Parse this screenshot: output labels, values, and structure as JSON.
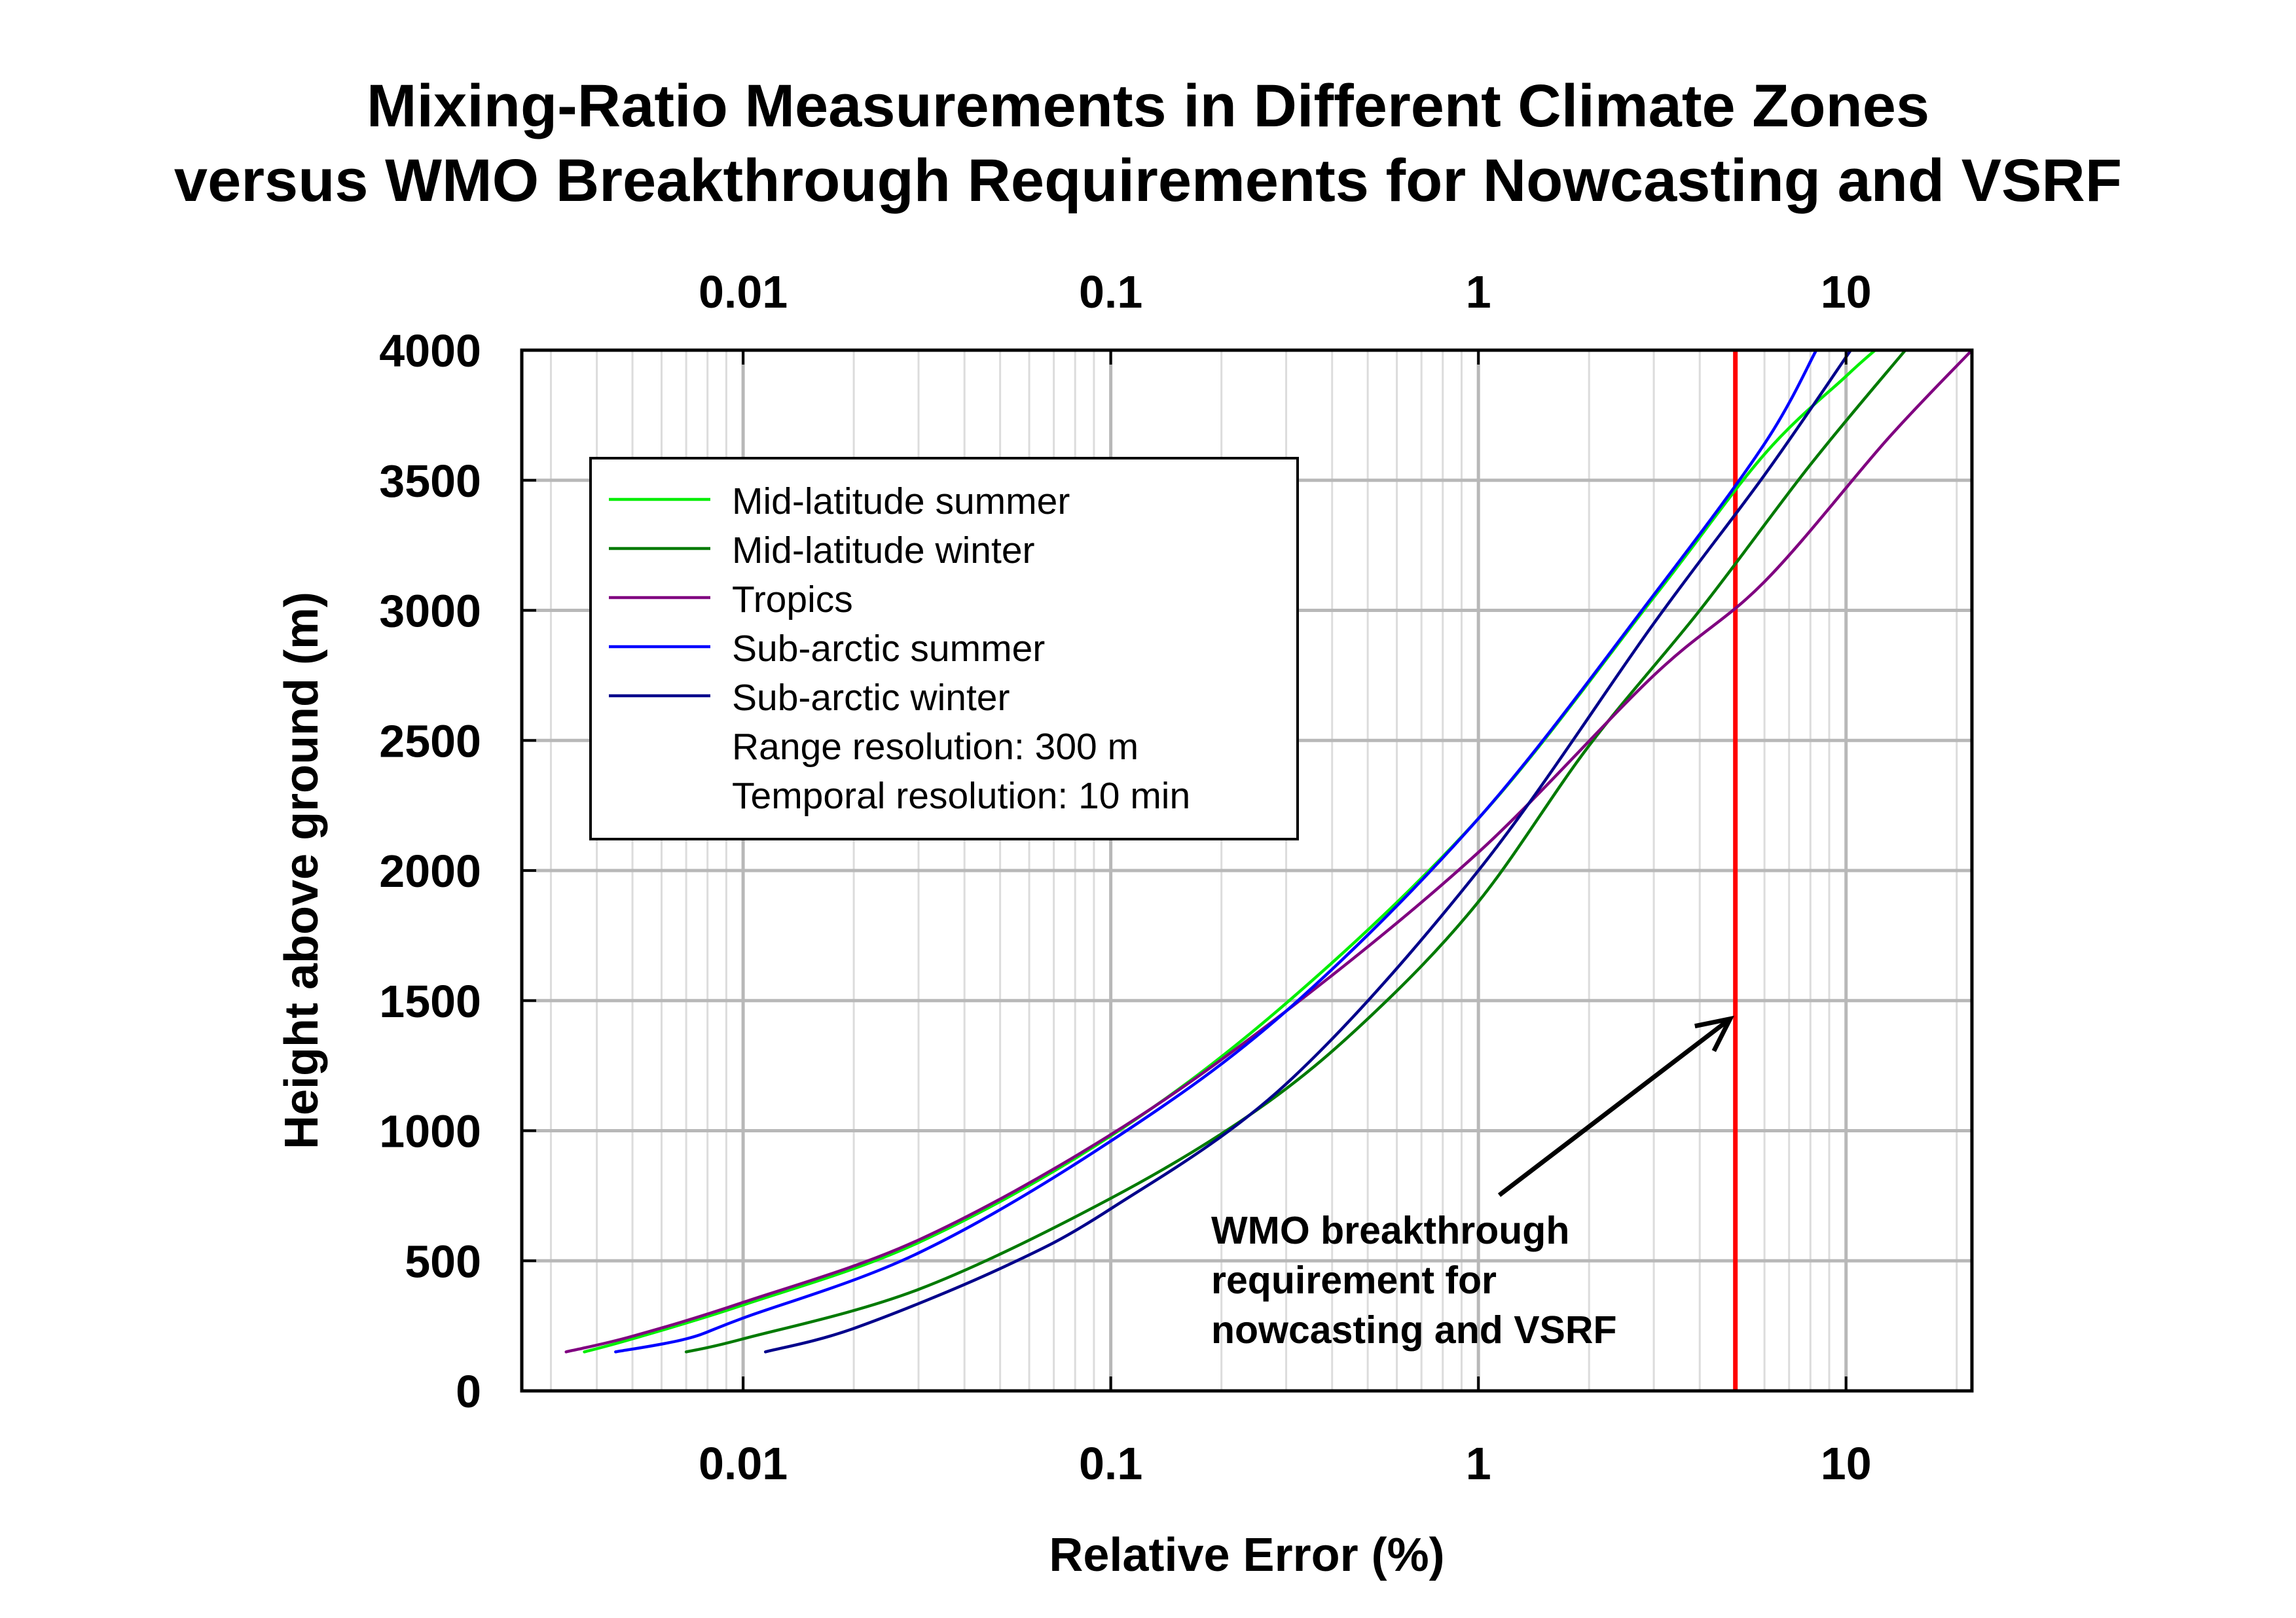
{
  "chart_data": {
    "type": "line",
    "title": [
      "Mixing-Ratio Measurements in Different Climate Zones",
      "versus WMO Breakthrough Requirements for Nowcasting and VSRF"
    ],
    "xlabel": "Relative Error (%)",
    "ylabel": "Height above ground (m)",
    "xscale": "log",
    "xlim": [
      0.0025,
      22
    ],
    "ylim": [
      0,
      4000
    ],
    "x_ticks": [
      0.01,
      0.1,
      1,
      10
    ],
    "x_tick_labels": [
      "0.01",
      "0.1",
      "1",
      "10"
    ],
    "x_tick_labels_top": [
      "0.01",
      "0.1",
      "1",
      "10"
    ],
    "y_ticks": [
      0,
      500,
      1000,
      1500,
      2000,
      2500,
      3000,
      3500,
      4000
    ],
    "y_tick_labels": [
      "0",
      "500",
      "1000",
      "1500",
      "2000",
      "2500",
      "3000",
      "3500",
      "4000"
    ],
    "grid": true,
    "legend_position": "upper-left",
    "legend_notes": [
      "Range resolution: 300 m",
      "Temporal resolution: 10 min"
    ],
    "series": [
      {
        "name": "Mid-latitude summer",
        "color": "#00ee00",
        "points": [
          [
            0.0037,
            150
          ],
          [
            0.005,
            200
          ],
          [
            0.01,
            330
          ],
          [
            0.03,
            570
          ],
          [
            0.1,
            980
          ],
          [
            0.3,
            1490
          ],
          [
            1,
            2200
          ],
          [
            3,
            3050
          ],
          [
            6,
            3600
          ],
          [
            10,
            3900
          ],
          [
            12,
            4000
          ]
        ]
      },
      {
        "name": "Mid-latitude winter",
        "color": "#007a00",
        "points": [
          [
            0.007,
            150
          ],
          [
            0.01,
            200
          ],
          [
            0.03,
            390
          ],
          [
            0.1,
            740
          ],
          [
            0.25,
            1080
          ],
          [
            0.5,
            1430
          ],
          [
            1,
            1880
          ],
          [
            2,
            2480
          ],
          [
            4,
            3000
          ],
          [
            8,
            3560
          ],
          [
            14.5,
            4000
          ]
        ]
      },
      {
        "name": "Tropics",
        "color": "#800080",
        "points": [
          [
            0.0033,
            150
          ],
          [
            0.005,
            210
          ],
          [
            0.01,
            340
          ],
          [
            0.03,
            580
          ],
          [
            0.1,
            985
          ],
          [
            0.3,
            1460
          ],
          [
            1,
            2070
          ],
          [
            3,
            2750
          ],
          [
            6,
            3110
          ],
          [
            13,
            3660
          ],
          [
            22,
            4000
          ]
        ]
      },
      {
        "name": "Sub-arctic summer",
        "color": "#0000ff",
        "points": [
          [
            0.0045,
            150
          ],
          [
            0.007,
            200
          ],
          [
            0.01,
            280
          ],
          [
            0.03,
            530
          ],
          [
            0.1,
            960
          ],
          [
            0.3,
            1460
          ],
          [
            1,
            2200
          ],
          [
            3,
            3060
          ],
          [
            6,
            3640
          ],
          [
            8.3,
            4000
          ]
        ]
      },
      {
        "name": "Sub-arctic winter",
        "color": "#00008b",
        "points": [
          [
            0.0115,
            150
          ],
          [
            0.02,
            240
          ],
          [
            0.05,
            470
          ],
          [
            0.1,
            700
          ],
          [
            0.3,
            1180
          ],
          [
            1,
            2000
          ],
          [
            3,
            2950
          ],
          [
            6,
            3520
          ],
          [
            10.3,
            4000
          ]
        ]
      }
    ],
    "reference_lines": [
      {
        "x": 5,
        "color": "#ff0000",
        "orientation": "vertical"
      }
    ],
    "annotations": [
      {
        "text": [
          "WMO breakthrough",
          "requirement for",
          "nowcasting and VSRF"
        ],
        "arrow_to": [
          5,
          1450
        ],
        "anchor": [
          0.5,
          700
        ]
      }
    ]
  }
}
